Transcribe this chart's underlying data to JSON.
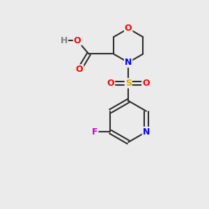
{
  "background_color": "#ebebeb",
  "bond_color": "#2d2d2d",
  "atom_colors": {
    "O": "#ff0000",
    "N": "#0000ff",
    "S": "#ccaa00",
    "F": "#cc00cc",
    "H": "#808080",
    "C": "#2d2d2d"
  },
  "font_size_atoms": 9,
  "fig_size": [
    3.0,
    3.0
  ],
  "dpi": 100
}
